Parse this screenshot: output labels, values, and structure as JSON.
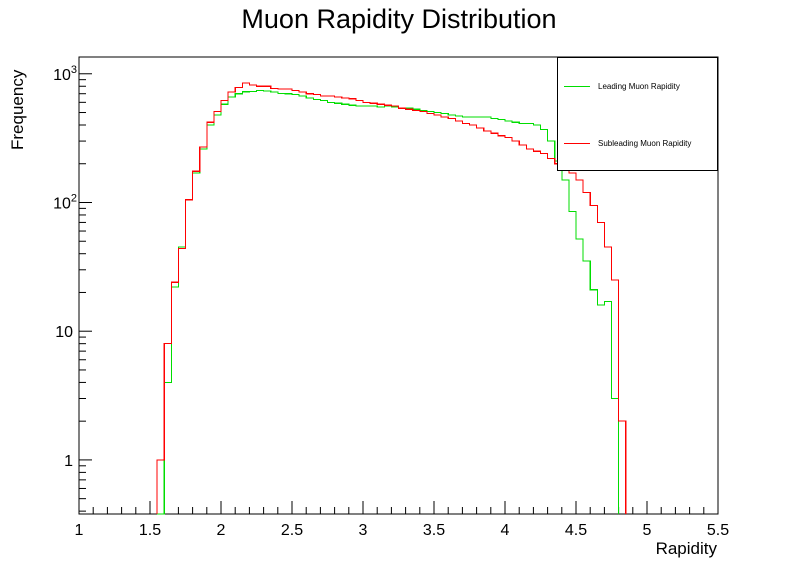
{
  "chart_data": {
    "type": "step-histogram",
    "title": "Muon Rapidity Distribution",
    "xlabel": "Rapidity",
    "ylabel": "Frequency",
    "xlim": [
      1,
      5.5
    ],
    "ylim": [
      0.38,
      1350
    ],
    "y_scale": "log",
    "grid": false,
    "legend_position": "top-right",
    "bin_width": 0.05,
    "x_ticks": [
      "1",
      "1.5",
      "2",
      "2.5",
      "3",
      "3.5",
      "4",
      "4.5",
      "5",
      "5.5"
    ],
    "y_ticks": [
      {
        "value": 1,
        "label": "1"
      },
      {
        "value": 10,
        "label": "10"
      },
      {
        "value": 100,
        "label": "10^2"
      },
      {
        "value": 1000,
        "label": "10^3"
      }
    ],
    "series": [
      {
        "name": "Leading Muon Rapidity",
        "color": "#00dd00",
        "bins_start": 1.55,
        "values": [
          0.1,
          4,
          22,
          45,
          105,
          170,
          260,
          400,
          480,
          580,
          660,
          700,
          725,
          730,
          740,
          735,
          720,
          705,
          700,
          690,
          670,
          650,
          630,
          620,
          600,
          590,
          580,
          570,
          560,
          560,
          560,
          550,
          560,
          550,
          540,
          540,
          530,
          520,
          510,
          500,
          490,
          480,
          470,
          460,
          460,
          460,
          460,
          450,
          440,
          430,
          420,
          410,
          410,
          400,
          370,
          300,
          210,
          150,
          85,
          52,
          35,
          21,
          16,
          17,
          3
        ]
      },
      {
        "name": "Subleading Muon Rapidity",
        "color": "#ff0000",
        "bins_start": 1.55,
        "values": [
          1,
          8,
          24,
          44,
          105,
          175,
          270,
          420,
          510,
          620,
          720,
          780,
          850,
          820,
          800,
          800,
          770,
          760,
          760,
          740,
          720,
          700,
          690,
          670,
          670,
          660,
          650,
          640,
          620,
          600,
          590,
          580,
          570,
          560,
          540,
          530,
          520,
          510,
          490,
          480,
          460,
          450,
          430,
          410,
          400,
          380,
          360,
          345,
          330,
          320,
          300,
          280,
          260,
          250,
          240,
          220,
          200,
          190,
          170,
          150,
          120,
          95,
          70,
          45,
          25,
          2
        ]
      }
    ]
  }
}
